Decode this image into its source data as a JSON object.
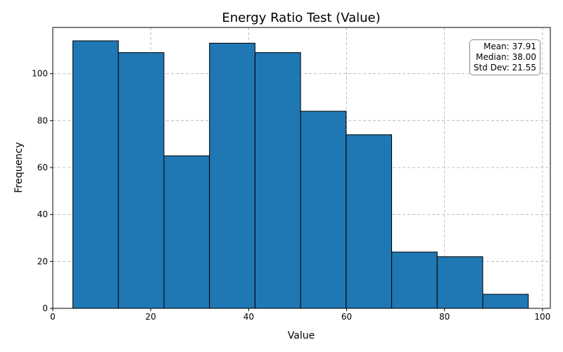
{
  "chart_data": {
    "type": "histogram",
    "title": "Energy Ratio Test (Value)",
    "xlabel": "Value",
    "ylabel": "Frequency",
    "xlim": [
      0,
      101.6
    ],
    "ylim": [
      0,
      119.7
    ],
    "xticks": [
      0,
      20,
      40,
      60,
      80,
      100
    ],
    "yticks": [
      0,
      20,
      40,
      60,
      80,
      100
    ],
    "grid": true,
    "bin_edges": [
      4.1,
      13.4,
      22.7,
      32.0,
      41.3,
      50.6,
      59.9,
      69.2,
      78.5,
      87.8,
      97.1
    ],
    "counts": [
      114,
      109,
      65,
      113,
      109,
      84,
      74,
      24,
      22,
      6
    ],
    "bar_color": "#1f77b4",
    "edge_color": "#000000"
  },
  "stats": {
    "mean": "Mean: 37.91",
    "median": "Median: 38.00",
    "std": "Std Dev: 21.55"
  }
}
